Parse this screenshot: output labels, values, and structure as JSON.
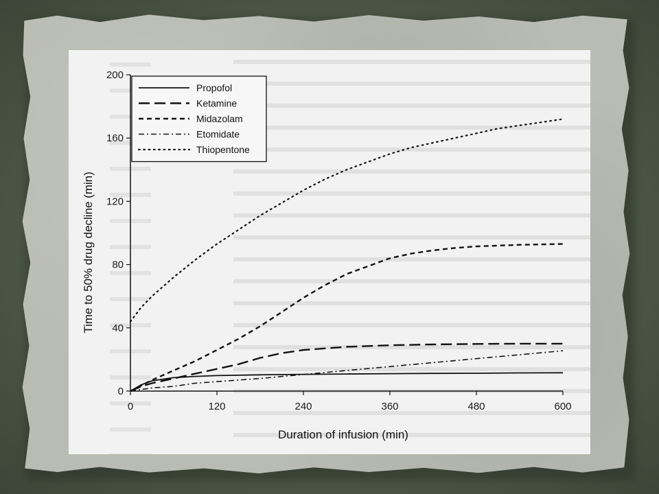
{
  "chart_data": {
    "type": "line",
    "xlabel": "Duration of infusion (min)",
    "ylabel": "Time to 50% drug decline (min)",
    "xlim": [
      0,
      600
    ],
    "ylim": [
      0,
      200
    ],
    "xticks": [
      0,
      120,
      240,
      360,
      480,
      600
    ],
    "yticks": [
      0,
      40,
      80,
      120,
      160,
      200
    ],
    "legend_position": "top-left",
    "grid": false,
    "series": [
      {
        "name": "Propofol",
        "dash": "solid",
        "x": [
          0,
          15,
          30,
          60,
          90,
          120,
          180,
          240,
          300,
          360,
          420,
          480,
          540,
          600
        ],
        "y": [
          0,
          4,
          6.5,
          8.5,
          9.3,
          9.8,
          10.3,
          10.6,
          10.8,
          11,
          11.2,
          11.3,
          11.5,
          11.6
        ]
      },
      {
        "name": "Ketamine",
        "dash": "long-dash",
        "x": [
          0,
          15,
          30,
          60,
          90,
          120,
          150,
          180,
          210,
          240,
          300,
          360,
          420,
          480,
          540,
          600
        ],
        "y": [
          0,
          3,
          5,
          8,
          11,
          14,
          17,
          21,
          24,
          26,
          28,
          29,
          29.5,
          29.8,
          30,
          30
        ]
      },
      {
        "name": "Midazolam",
        "dash": "dash",
        "x": [
          0,
          30,
          60,
          90,
          120,
          150,
          180,
          210,
          240,
          270,
          300,
          330,
          360,
          390,
          420,
          450,
          480,
          540,
          600
        ],
        "y": [
          0,
          7,
          13,
          19,
          26,
          33,
          41,
          50,
          59,
          67,
          74,
          79,
          84,
          87,
          89,
          90.5,
          91.5,
          92.5,
          93
        ]
      },
      {
        "name": "Etomidate",
        "dash": "dash-dot",
        "x": [
          0,
          30,
          60,
          90,
          120,
          180,
          240,
          300,
          360,
          420,
          480,
          540,
          600
        ],
        "y": [
          0,
          2,
          3,
          5,
          6,
          8,
          10.5,
          13,
          15.5,
          18,
          20.5,
          23,
          25.5
        ]
      },
      {
        "name": "Thiopentone",
        "dash": "dotted",
        "x": [
          0,
          15,
          30,
          60,
          90,
          120,
          150,
          180,
          210,
          240,
          270,
          300,
          330,
          360,
          390,
          420,
          450,
          480,
          510,
          540,
          570,
          600
        ],
        "y": [
          44,
          53,
          60,
          72,
          83,
          93,
          102,
          111,
          119,
          127,
          134,
          140,
          145,
          150,
          154,
          157,
          160,
          163,
          166,
          168,
          170,
          172
        ]
      }
    ]
  },
  "legend": {
    "items": [
      {
        "label": "Propofol"
      },
      {
        "label": "Ketamine"
      },
      {
        "label": "Midazolam"
      },
      {
        "label": "Etomidate"
      },
      {
        "label": "Thiopentone"
      }
    ]
  },
  "colors": {
    "line": "#111111",
    "background": "#f2f2f2",
    "frame": "#4f5a47",
    "paper": "#b9bcb3"
  }
}
